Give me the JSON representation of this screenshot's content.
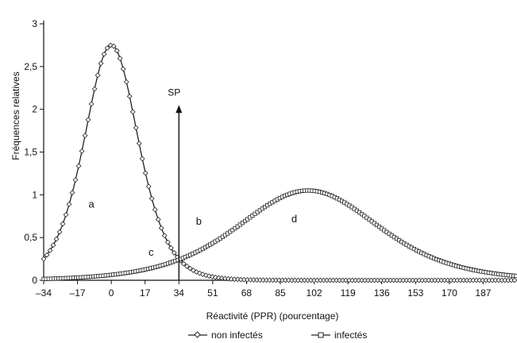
{
  "chart_data": {
    "type": "line",
    "xlabel": "Réactivité (PPR) (pourcentage)",
    "ylabel": "Fréquences relatives",
    "xlim": [
      -34,
      204
    ],
    "ylim": [
      0,
      3
    ],
    "x_ticks": [
      -34,
      -17,
      0,
      17,
      34,
      51,
      68,
      85,
      102,
      119,
      136,
      153,
      170,
      187
    ],
    "x_tick_labels": [
      "–34",
      "–17",
      "0",
      "17",
      "34",
      "51",
      "68",
      "85",
      "102",
      "119",
      "136",
      "153",
      "170",
      "187"
    ],
    "y_ticks": [
      0,
      0.5,
      1,
      1.5,
      2,
      2.5,
      3
    ],
    "y_tick_labels": [
      "0",
      "0,5",
      "1",
      "1,5",
      "2",
      "2,5",
      "3"
    ],
    "grid": false,
    "legend_placement": "bottom",
    "series": [
      {
        "name": "non infectés",
        "marker": "diamond",
        "distribution": "logistic",
        "peak_x": 0,
        "peak_y": 2.75,
        "scale": 9.1
      },
      {
        "name": "infectés",
        "marker": "square",
        "distribution": "logistic",
        "peak_x": 99,
        "peak_y": 1.05,
        "scale": 23.8
      }
    ],
    "cutoff": {
      "label": "SP",
      "x": 34,
      "y_top": 2.05
    },
    "annotations": [
      {
        "text": "a",
        "x": -10,
        "y": 0.85
      },
      {
        "text": "b",
        "x": 44,
        "y": 0.65
      },
      {
        "text": "c",
        "x": 20,
        "y": 0.29
      },
      {
        "text": "d",
        "x": 92,
        "y": 0.68
      }
    ]
  }
}
